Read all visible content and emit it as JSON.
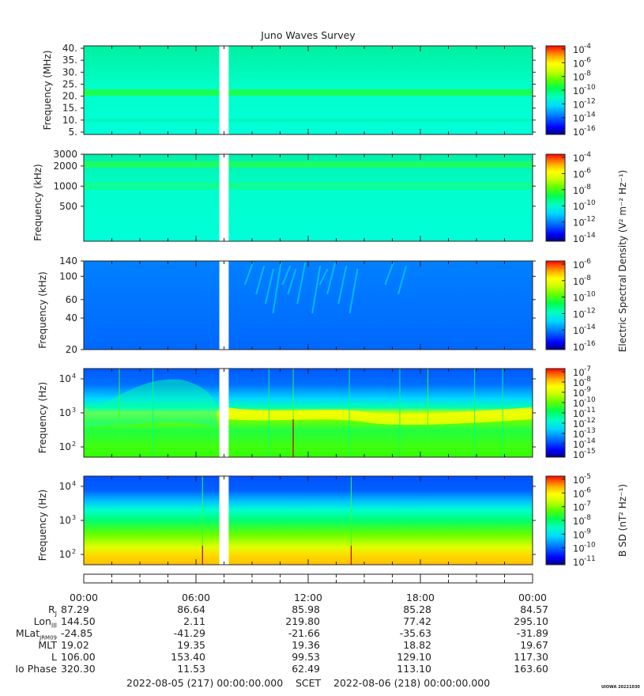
{
  "title": "Juno Waves Survey",
  "colors": {
    "gap": "#ffffff",
    "cbar": [
      "#000080",
      "#0000ff",
      "#0060ff",
      "#00c8ff",
      "#00ffd0",
      "#00ff60",
      "#40ff00",
      "#c0ff00",
      "#ffff00",
      "#ffc000",
      "#ff6000",
      "#ff0000"
    ]
  },
  "chart_data": [
    {
      "type": "heatmap",
      "panel": "hfwbr-high",
      "ylabel": "Frequency (MHz)",
      "ylim": [
        4,
        41
      ],
      "yscale": "linear",
      "yticks": [
        5,
        10,
        15,
        20,
        25,
        30,
        35,
        40
      ],
      "ytick_labels": [
        "5.",
        "10.",
        "15.",
        "20.",
        "25.",
        "30.",
        "35.",
        "40."
      ],
      "data_gap_hours": [
        7.25,
        7.75
      ],
      "colorbar_ticks": [
        "10-4",
        "10-6",
        "10-8",
        "10-10",
        "10-12",
        "10-14",
        "10-16"
      ],
      "colorbar_exponents": [
        -4,
        -6,
        -8,
        -10,
        -12,
        -14,
        -16
      ]
    },
    {
      "type": "heatmap",
      "panel": "hfwbr-low",
      "ylabel": "Frequency (kHz)",
      "yscale": "log",
      "ylim": [
        150,
        3000
      ],
      "yticks": [
        500,
        1000,
        2000,
        3000
      ],
      "ytick_labels": [
        "500",
        "1000",
        "2000",
        "3000"
      ],
      "data_gap_hours": [
        7.25,
        7.75
      ],
      "colorbar_ticks": [
        "10-4",
        "10-6",
        "10-8",
        "10-10",
        "10-12",
        "10-14"
      ],
      "colorbar_exponents": [
        -4,
        -6,
        -8,
        -10,
        -12,
        -14
      ]
    },
    {
      "type": "heatmap",
      "panel": "lfr-high",
      "ylabel": "Frequency (kHz)",
      "yscale": "log",
      "ylim": [
        20,
        140
      ],
      "yticks": [
        20,
        40,
        60,
        100,
        140
      ],
      "ytick_labels": [
        "20",
        "40",
        "60",
        "100",
        "140"
      ],
      "data_gap_hours": [
        7.25,
        7.75
      ],
      "colorbar_ticks": [
        "10-6",
        "10-8",
        "10-10",
        "10-12",
        "10-14",
        "10-16"
      ],
      "colorbar_exponents": [
        -6,
        -8,
        -10,
        -12,
        -14,
        -16
      ]
    },
    {
      "type": "heatmap",
      "panel": "lfr-low-e",
      "ylabel": "Frequency (Hz)",
      "yscale": "log",
      "ylim": [
        50,
        20000
      ],
      "yticks": [
        100,
        1000,
        10000
      ],
      "ytick_labels": [
        "10",
        "10",
        "10"
      ],
      "ytick_exponents": [
        "2",
        "3",
        "4"
      ],
      "data_gap_hours": [
        7.25,
        7.75
      ],
      "colorbar_ticks": [
        "10-7",
        "10-8",
        "10-9",
        "10-10",
        "10-11",
        "10-12",
        "10-13",
        "10-14",
        "10-15"
      ],
      "colorbar_exponents": [
        -7,
        -8,
        -9,
        -10,
        -11,
        -12,
        -13,
        -14,
        -15
      ]
    },
    {
      "type": "heatmap",
      "panel": "lfr-low-b",
      "ylabel": "Frequency (Hz)",
      "yscale": "log",
      "ylim": [
        50,
        20000
      ],
      "yticks": [
        100,
        1000,
        10000
      ],
      "ytick_labels": [
        "10",
        "10",
        "10"
      ],
      "ytick_exponents": [
        "2",
        "3",
        "4"
      ],
      "data_gap_hours": [
        7.25,
        7.75
      ],
      "colorbar_label": "B SD (nT² Hz⁻¹)",
      "colorbar_ticks": [
        "10-5",
        "10-6",
        "10-7",
        "10-8",
        "10-9",
        "10-10",
        "10-11"
      ],
      "colorbar_exponents": [
        -5,
        -6,
        -7,
        -8,
        -9,
        -10,
        -11
      ]
    }
  ],
  "e_colorbar_label": "Electric Spectral Density (V² m⁻² Hz⁻¹)",
  "time_axis": {
    "xlim_hours": [
      0,
      24
    ],
    "major_ticks_hours": [
      0,
      6,
      12,
      18,
      24
    ],
    "labels": [
      "00:00",
      "06:00",
      "12:00",
      "18:00",
      "00:00"
    ]
  },
  "ephemeris": {
    "rows": [
      {
        "label": "Rj",
        "values": [
          "87.29",
          "86.64",
          "85.98",
          "85.28",
          "84.57"
        ]
      },
      {
        "label": "LonIII",
        "values": [
          "144.50",
          "2.11",
          "219.80",
          "77.42",
          "295.10"
        ]
      },
      {
        "label": "MLatJRM09",
        "values": [
          "-24.85",
          "-41.29",
          "-21.66",
          "-35.63",
          "-31.89"
        ]
      },
      {
        "label": "MLT",
        "values": [
          "19.02",
          "19.35",
          "19.36",
          "18.82",
          "19.67"
        ]
      },
      {
        "label": "L",
        "values": [
          "106.00",
          "153.40",
          "99.53",
          "129.10",
          "117.30"
        ]
      },
      {
        "label": "Io Phase",
        "values": [
          "320.30",
          "11.53",
          "62.49",
          "113.10",
          "163.60"
        ]
      }
    ]
  },
  "footer": {
    "start": "2022-08-05 (217) 00:00:00.000",
    "scet": "SCET",
    "end": "2022-08-06 (218) 00:00:00.000"
  },
  "stamp": "UIOWA 20221030"
}
